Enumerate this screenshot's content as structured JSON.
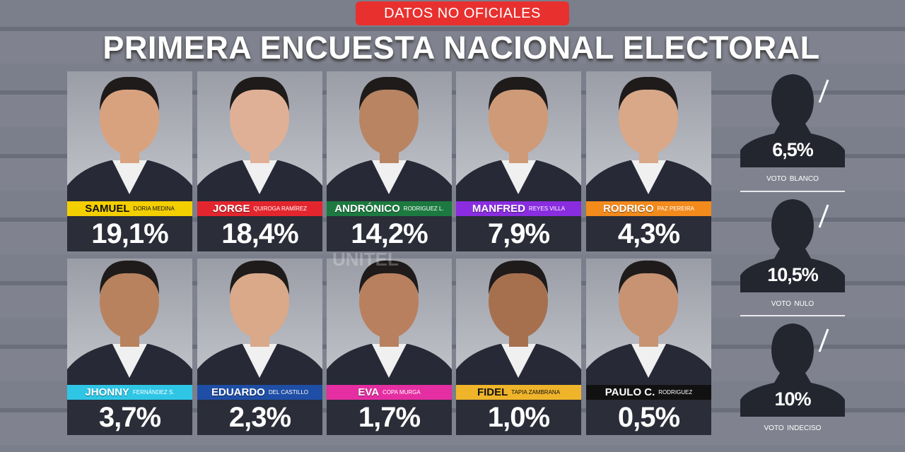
{
  "banner": "DATOS NO OFICIALES",
  "title": "PRIMERA ENCUESTA NACIONAL ELECTORAL",
  "watermark": "UNITEL",
  "candidates": [
    {
      "first": "SAMUEL",
      "last": "DORIA MEDINA",
      "result": "19,1%"
    },
    {
      "first": "JORGE",
      "last": "QUIROGA RAMÍREZ",
      "result": "18,4%"
    },
    {
      "first": "ANDRÓNICO",
      "last": "RODRIGUEZ L.",
      "result": "14,2%"
    },
    {
      "first": "MANFRED",
      "last": "REYES VILLA",
      "result": "7,9%"
    },
    {
      "first": "RODRIGO",
      "last": "PAZ PEREIRA",
      "result": "4,3%"
    },
    {
      "first": "JHONNY",
      "last": "FERNÁNDEZ S.",
      "result": "3,7%"
    },
    {
      "first": "EDUARDO",
      "last": "DEL CASTILLO",
      "result": "2,3%"
    },
    {
      "first": "EVA",
      "last": "COPA MURGA",
      "result": "1,7%"
    },
    {
      "first": "FIDEL",
      "last": "TAPIA ZAMBRANA",
      "result": "1,0%"
    },
    {
      "first": "PAULO C.",
      "last": "RODRIGUEZ",
      "result": "0,5%"
    }
  ],
  "others": [
    {
      "result": "6,5%",
      "label": "VOTO",
      "sublabel": "BLANCO"
    },
    {
      "result": "10,5%",
      "label": "VOTO",
      "sublabel": "NULO"
    },
    {
      "result": "10%",
      "label": "VOTO",
      "sublabel": "INDECISO"
    }
  ]
}
